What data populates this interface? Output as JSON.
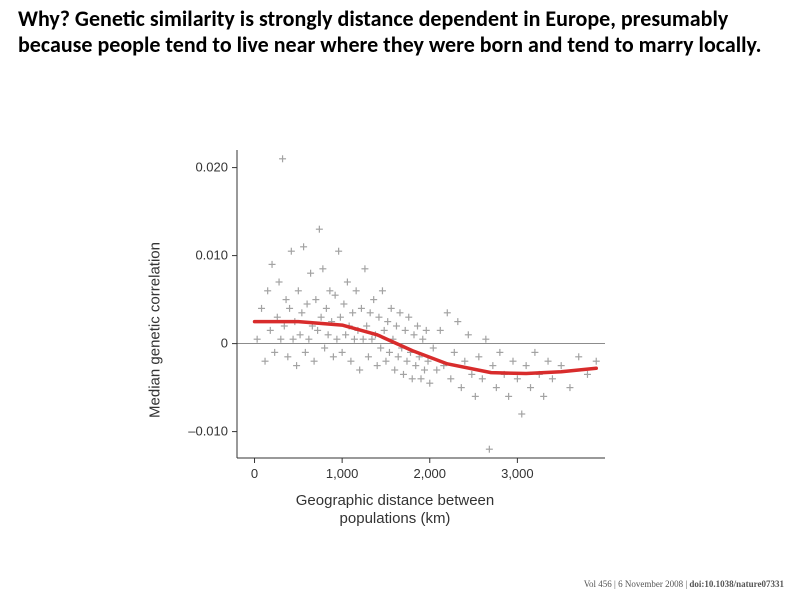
{
  "heading": {
    "text": "Why?  Genetic similarity is strongly distance dependent in Europe, presumably because people tend to live near where they were born and tend to marry locally.",
    "fontsize": 22,
    "color": "#000000",
    "font_weight": "700"
  },
  "chart": {
    "type": "scatter",
    "xlim": [
      -200,
      4000
    ],
    "ylim": [
      -0.013,
      0.022
    ],
    "xtick_values": [
      0,
      1000,
      2000,
      3000
    ],
    "xtick_labels": [
      "0",
      "1,000",
      "2,000",
      "3,000"
    ],
    "ytick_values": [
      -0.01,
      0,
      0.01,
      0.02
    ],
    "ytick_labels": [
      "–0.010",
      "0",
      "0.010",
      "0.020"
    ],
    "xlabel": "Geographic distance between\npopulations (km)",
    "ylabel": "Median genetic correlation",
    "label_fontsize": 15,
    "tick_fontsize": 13,
    "tick_color": "#333333",
    "background_color": "#ffffff",
    "axis_color": "#333333",
    "zero_line_color": "#666666",
    "marker_style": "plus",
    "marker_size": 7,
    "marker_stroke": 1.2,
    "marker_color": "#a3a3a3",
    "trend_line_color": "#d82c2c",
    "trend_line_width": 3.5,
    "trend_line": [
      {
        "x": 0,
        "y": 0.0025
      },
      {
        "x": 500,
        "y": 0.0025
      },
      {
        "x": 1000,
        "y": 0.0021
      },
      {
        "x": 1400,
        "y": 0.001
      },
      {
        "x": 1800,
        "y": -0.0008
      },
      {
        "x": 2200,
        "y": -0.0023
      },
      {
        "x": 2700,
        "y": -0.0033
      },
      {
        "x": 3100,
        "y": -0.0034
      },
      {
        "x": 3500,
        "y": -0.0032
      },
      {
        "x": 3900,
        "y": -0.0028
      }
    ],
    "points": [
      {
        "x": 30,
        "y": 0.0005
      },
      {
        "x": 80,
        "y": 0.004
      },
      {
        "x": 120,
        "y": -0.002
      },
      {
        "x": 150,
        "y": 0.006
      },
      {
        "x": 180,
        "y": 0.0015
      },
      {
        "x": 200,
        "y": 0.009
      },
      {
        "x": 230,
        "y": -0.001
      },
      {
        "x": 260,
        "y": 0.003
      },
      {
        "x": 280,
        "y": 0.007
      },
      {
        "x": 300,
        "y": 0.0005
      },
      {
        "x": 320,
        "y": 0.021
      },
      {
        "x": 340,
        "y": 0.002
      },
      {
        "x": 360,
        "y": 0.005
      },
      {
        "x": 380,
        "y": -0.0015
      },
      {
        "x": 400,
        "y": 0.004
      },
      {
        "x": 420,
        "y": 0.0105
      },
      {
        "x": 440,
        "y": 0.0005
      },
      {
        "x": 460,
        "y": 0.0025
      },
      {
        "x": 480,
        "y": -0.0025
      },
      {
        "x": 500,
        "y": 0.006
      },
      {
        "x": 520,
        "y": 0.001
      },
      {
        "x": 540,
        "y": 0.0035
      },
      {
        "x": 560,
        "y": 0.011
      },
      {
        "x": 580,
        "y": -0.001
      },
      {
        "x": 600,
        "y": 0.0045
      },
      {
        "x": 620,
        "y": 0.0005
      },
      {
        "x": 640,
        "y": 0.008
      },
      {
        "x": 660,
        "y": 0.002
      },
      {
        "x": 680,
        "y": -0.002
      },
      {
        "x": 700,
        "y": 0.005
      },
      {
        "x": 720,
        "y": 0.0015
      },
      {
        "x": 740,
        "y": 0.013
      },
      {
        "x": 760,
        "y": 0.003
      },
      {
        "x": 780,
        "y": 0.0085
      },
      {
        "x": 800,
        "y": -0.0005
      },
      {
        "x": 820,
        "y": 0.004
      },
      {
        "x": 840,
        "y": 0.001
      },
      {
        "x": 860,
        "y": 0.006
      },
      {
        "x": 880,
        "y": 0.0025
      },
      {
        "x": 900,
        "y": -0.0015
      },
      {
        "x": 920,
        "y": 0.0055
      },
      {
        "x": 940,
        "y": 0.0005
      },
      {
        "x": 960,
        "y": 0.0105
      },
      {
        "x": 980,
        "y": 0.003
      },
      {
        "x": 1000,
        "y": -0.001
      },
      {
        "x": 1020,
        "y": 0.0045
      },
      {
        "x": 1040,
        "y": 0.001
      },
      {
        "x": 1060,
        "y": 0.007
      },
      {
        "x": 1080,
        "y": 0.002
      },
      {
        "x": 1100,
        "y": -0.002
      },
      {
        "x": 1120,
        "y": 0.0035
      },
      {
        "x": 1140,
        "y": 0.0005
      },
      {
        "x": 1160,
        "y": 0.006
      },
      {
        "x": 1180,
        "y": 0.0015
      },
      {
        "x": 1200,
        "y": -0.003
      },
      {
        "x": 1220,
        "y": 0.004
      },
      {
        "x": 1240,
        "y": 0.0005
      },
      {
        "x": 1260,
        "y": 0.0085
      },
      {
        "x": 1280,
        "y": 0.002
      },
      {
        "x": 1300,
        "y": -0.0015
      },
      {
        "x": 1320,
        "y": 0.0035
      },
      {
        "x": 1340,
        "y": 0.0005
      },
      {
        "x": 1360,
        "y": 0.005
      },
      {
        "x": 1380,
        "y": 0.001
      },
      {
        "x": 1400,
        "y": -0.0025
      },
      {
        "x": 1420,
        "y": 0.003
      },
      {
        "x": 1440,
        "y": -0.0005
      },
      {
        "x": 1460,
        "y": 0.006
      },
      {
        "x": 1480,
        "y": 0.0015
      },
      {
        "x": 1500,
        "y": -0.002
      },
      {
        "x": 1520,
        "y": 0.0025
      },
      {
        "x": 1540,
        "y": -0.001
      },
      {
        "x": 1560,
        "y": 0.004
      },
      {
        "x": 1580,
        "y": 0.0005
      },
      {
        "x": 1600,
        "y": -0.003
      },
      {
        "x": 1620,
        "y": 0.002
      },
      {
        "x": 1640,
        "y": -0.0015
      },
      {
        "x": 1660,
        "y": 0.0035
      },
      {
        "x": 1680,
        "y": -0.0005
      },
      {
        "x": 1700,
        "y": -0.0035
      },
      {
        "x": 1720,
        "y": 0.0015
      },
      {
        "x": 1740,
        "y": -0.002
      },
      {
        "x": 1760,
        "y": 0.003
      },
      {
        "x": 1780,
        "y": -0.001
      },
      {
        "x": 1800,
        "y": -0.004
      },
      {
        "x": 1820,
        "y": 0.001
      },
      {
        "x": 1840,
        "y": -0.0025
      },
      {
        "x": 1860,
        "y": 0.002
      },
      {
        "x": 1880,
        "y": -0.0015
      },
      {
        "x": 1900,
        "y": -0.004
      },
      {
        "x": 1920,
        "y": 0.0005
      },
      {
        "x": 1940,
        "y": -0.003
      },
      {
        "x": 1960,
        "y": 0.0015
      },
      {
        "x": 1980,
        "y": -0.002
      },
      {
        "x": 2000,
        "y": -0.0045
      },
      {
        "x": 2040,
        "y": -0.0005
      },
      {
        "x": 2080,
        "y": -0.003
      },
      {
        "x": 2120,
        "y": 0.0015
      },
      {
        "x": 2160,
        "y": -0.0025
      },
      {
        "x": 2200,
        "y": 0.0035
      },
      {
        "x": 2240,
        "y": -0.004
      },
      {
        "x": 2280,
        "y": -0.001
      },
      {
        "x": 2320,
        "y": 0.0025
      },
      {
        "x": 2360,
        "y": -0.005
      },
      {
        "x": 2400,
        "y": -0.002
      },
      {
        "x": 2440,
        "y": 0.001
      },
      {
        "x": 2480,
        "y": -0.0035
      },
      {
        "x": 2520,
        "y": -0.006
      },
      {
        "x": 2560,
        "y": -0.0015
      },
      {
        "x": 2600,
        "y": -0.004
      },
      {
        "x": 2640,
        "y": 0.0005
      },
      {
        "x": 2680,
        "y": -0.012
      },
      {
        "x": 2720,
        "y": -0.0025
      },
      {
        "x": 2760,
        "y": -0.005
      },
      {
        "x": 2800,
        "y": -0.001
      },
      {
        "x": 2850,
        "y": -0.0035
      },
      {
        "x": 2900,
        "y": -0.006
      },
      {
        "x": 2950,
        "y": -0.002
      },
      {
        "x": 3000,
        "y": -0.004
      },
      {
        "x": 3050,
        "y": -0.008
      },
      {
        "x": 3100,
        "y": -0.0025
      },
      {
        "x": 3150,
        "y": -0.005
      },
      {
        "x": 3200,
        "y": -0.001
      },
      {
        "x": 3250,
        "y": -0.0035
      },
      {
        "x": 3300,
        "y": -0.006
      },
      {
        "x": 3350,
        "y": -0.002
      },
      {
        "x": 3400,
        "y": -0.004
      },
      {
        "x": 3500,
        "y": -0.0025
      },
      {
        "x": 3600,
        "y": -0.005
      },
      {
        "x": 3700,
        "y": -0.0015
      },
      {
        "x": 3800,
        "y": -0.0035
      },
      {
        "x": 3900,
        "y": -0.002
      }
    ]
  },
  "citation": {
    "prefix": "Vol 456 | 6 November 2008 | ",
    "doi": "doi:10.1038/nature07331",
    "fontsize": 9,
    "color": "#555555"
  }
}
